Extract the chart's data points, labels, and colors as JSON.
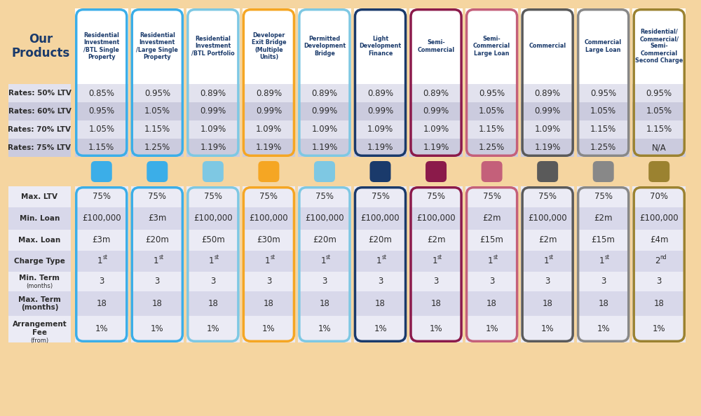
{
  "background_color": "#F5D5A0",
  "title_text": "Our\nProducts",
  "title_color": "#1A3A6B",
  "columns": [
    {
      "label": "Residential\nInvestment\n/BTL Single\nProperty",
      "border_color": "#3BAEE8",
      "icon_color": "#3BAEE8"
    },
    {
      "label": "Residential\nInvestment\n/Large Single\nProperty",
      "border_color": "#3BAEE8",
      "icon_color": "#3BAEE8"
    },
    {
      "label": "Residential\nInvestment\n/BTL Portfolio",
      "border_color": "#7EC8E3",
      "icon_color": "#7EC8E3"
    },
    {
      "label": "Developer\nExit Bridge\n(Multiple\nUnits)",
      "border_color": "#F5A623",
      "icon_color": "#F5A623"
    },
    {
      "label": "Permitted\nDevelopment\nBridge",
      "border_color": "#7EC8E3",
      "icon_color": "#7EC8E3"
    },
    {
      "label": "Light\nDevelopment\nFinance",
      "border_color": "#1A3A6B",
      "icon_color": "#1A3A6B"
    },
    {
      "label": "Semi-\nCommercial",
      "border_color": "#8B1A4A",
      "icon_color": "#8B1A4A"
    },
    {
      "label": "Semi-\nCommercial\nLarge Loan",
      "border_color": "#C4607A",
      "icon_color": "#C4607A"
    },
    {
      "label": "Commercial",
      "border_color": "#5A5A5A",
      "icon_color": "#5A5A5A"
    },
    {
      "label": "Commercial\nLarge Loan",
      "border_color": "#888888",
      "icon_color": "#888888"
    },
    {
      "label": "Residential/\nCommercial/\nSemi-\nCommercial\nSecond Charge",
      "border_color": "#9B8230",
      "icon_color": "#9B8230"
    }
  ],
  "top_rows": [
    {
      "label": "Rates: 50% LTV",
      "values": [
        "0.85%",
        "0.95%",
        "0.89%",
        "0.89%",
        "0.89%",
        "0.89%",
        "0.89%",
        "0.95%",
        "0.89%",
        "0.95%",
        "0.95%"
      ]
    },
    {
      "label": "Rates: 60% LTV",
      "values": [
        "0.95%",
        "1.05%",
        "0.99%",
        "0.99%",
        "0.99%",
        "0.99%",
        "0.99%",
        "1.05%",
        "0.99%",
        "1.05%",
        "1.05%"
      ]
    },
    {
      "label": "Rates: 70% LTV",
      "values": [
        "1.05%",
        "1.15%",
        "1.09%",
        "1.09%",
        "1.09%",
        "1.09%",
        "1.09%",
        "1.15%",
        "1.09%",
        "1.15%",
        "1.15%"
      ]
    },
    {
      "label": "Rates: 75% LTV",
      "values": [
        "1.15%",
        "1.25%",
        "1.19%",
        "1.19%",
        "1.19%",
        "1.19%",
        "1.19%",
        "1.25%",
        "1.19%",
        "1.25%",
        "N/A"
      ]
    }
  ],
  "bottom_rows": [
    {
      "label": "Max. LTV",
      "sublabel": "",
      "values": [
        "75%",
        "75%",
        "75%",
        "75%",
        "75%",
        "75%",
        "75%",
        "75%",
        "75%",
        "75%",
        "70%"
      ]
    },
    {
      "label": "Min. Loan",
      "sublabel": "",
      "values": [
        "£100,000",
        "£3m",
        "£100,000",
        "£100,000",
        "£100,000",
        "£100,000",
        "£100,000",
        "£2m",
        "£100,000",
        "£2m",
        "£100,000"
      ]
    },
    {
      "label": "Max. Loan",
      "sublabel": "",
      "values": [
        "£3m",
        "£20m",
        "£50m",
        "£30m",
        "£20m",
        "£20m",
        "£2m",
        "£15m",
        "£2m",
        "£15m",
        "£4m"
      ]
    },
    {
      "label": "Charge Type",
      "sublabel": "",
      "values": [
        "1st",
        "1st",
        "1st",
        "1st",
        "1st",
        "1st",
        "1st",
        "1st",
        "1st",
        "1st",
        "2nd"
      ]
    },
    {
      "label": "Min. Term (months)",
      "sublabel": "",
      "values": [
        "3",
        "3",
        "3",
        "3",
        "3",
        "3",
        "3",
        "3",
        "3",
        "3",
        "3"
      ]
    },
    {
      "label": "Max. Term\n(months)",
      "sublabel": "",
      "values": [
        "18",
        "18",
        "18",
        "18",
        "18",
        "18",
        "18",
        "18",
        "18",
        "18",
        "18"
      ]
    },
    {
      "label": "Arrangement\nFee (from)",
      "sublabel": "",
      "values": [
        "1%",
        "1%",
        "1%",
        "1%",
        "1%",
        "1%",
        "1%",
        "1%",
        "1%",
        "1%",
        "1%"
      ]
    }
  ],
  "row_colors_top": [
    "#E2E2EE",
    "#CBCBDE",
    "#E2E2EE",
    "#CBCBDE"
  ],
  "row_colors_bottom": [
    "#EBEBF5",
    "#D8D8EA",
    "#EBEBF5",
    "#D8D8EA",
    "#EBEBF5",
    "#D8D8EA",
    "#EBEBF5"
  ],
  "header_bg": "#FFFFFF",
  "cell_bg_white": "#FFFFFF",
  "text_color_dark": "#2C2C2C",
  "text_color_blue": "#1A3A6B"
}
